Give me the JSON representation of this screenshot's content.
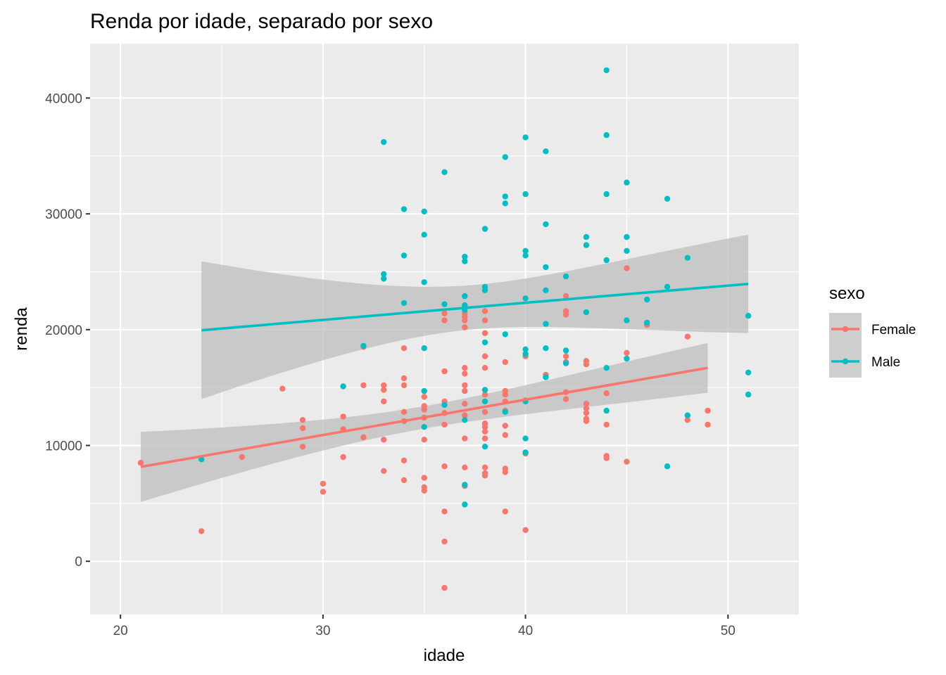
{
  "chart_data": {
    "type": "scatter",
    "title": "Renda por idade, separado por sexo",
    "xlabel": "idade",
    "ylabel": "renda",
    "xlim": [
      18.5,
      53.5
    ],
    "ylim": [
      -4600,
      44700
    ],
    "x_ticks": [
      20,
      30,
      40,
      50
    ],
    "y_ticks": [
      0,
      10000,
      20000,
      30000,
      40000
    ],
    "x_tick_labels": [
      "20",
      "30",
      "40",
      "50"
    ],
    "y_tick_labels": [
      "0",
      "10000",
      "20000",
      "30000",
      "40000"
    ],
    "grid": true,
    "legend_position": "right",
    "legend_title": "sexo",
    "colors": {
      "panel_bg": "#ebebeb",
      "grid": "#ffffff",
      "ribbon": "#bdbdbd",
      "Female": "#f8766d",
      "Male": "#00bfc4"
    },
    "series": [
      {
        "name": "Female",
        "color": "#f8766d",
        "points": [
          [
            21,
            8500
          ],
          [
            24,
            2600
          ],
          [
            26,
            9000
          ],
          [
            28,
            14900
          ],
          [
            29,
            12200
          ],
          [
            29,
            11500
          ],
          [
            29,
            9900
          ],
          [
            30,
            6700
          ],
          [
            30,
            6000
          ],
          [
            31,
            12500
          ],
          [
            31,
            11400
          ],
          [
            31,
            9000
          ],
          [
            32,
            18500
          ],
          [
            32,
            15200
          ],
          [
            32,
            10700
          ],
          [
            33,
            15200
          ],
          [
            33,
            14800
          ],
          [
            33,
            13800
          ],
          [
            33,
            10500
          ],
          [
            33,
            7800
          ],
          [
            34,
            18400
          ],
          [
            34,
            15800
          ],
          [
            34,
            15200
          ],
          [
            34,
            12900
          ],
          [
            34,
            12100
          ],
          [
            34,
            8700
          ],
          [
            34,
            7000
          ],
          [
            35,
            14200
          ],
          [
            35,
            13400
          ],
          [
            35,
            13100
          ],
          [
            35,
            12400
          ],
          [
            35,
            10500
          ],
          [
            35,
            7200
          ],
          [
            35,
            6400
          ],
          [
            35,
            6100
          ],
          [
            36,
            21400
          ],
          [
            36,
            20800
          ],
          [
            36,
            16400
          ],
          [
            36,
            13800
          ],
          [
            36,
            12800
          ],
          [
            36,
            11800
          ],
          [
            36,
            8200
          ],
          [
            36,
            4300
          ],
          [
            36,
            1700
          ],
          [
            36,
            -2300
          ],
          [
            37,
            21400
          ],
          [
            37,
            21100
          ],
          [
            37,
            20800
          ],
          [
            37,
            20200
          ],
          [
            37,
            16700
          ],
          [
            37,
            16200
          ],
          [
            37,
            15200
          ],
          [
            37,
            14700
          ],
          [
            37,
            13600
          ],
          [
            37,
            12600
          ],
          [
            37,
            10600
          ],
          [
            37,
            8100
          ],
          [
            37,
            6500
          ],
          [
            38,
            21600
          ],
          [
            38,
            20800
          ],
          [
            38,
            19700
          ],
          [
            38,
            17700
          ],
          [
            38,
            16700
          ],
          [
            38,
            14400
          ],
          [
            38,
            12900
          ],
          [
            38,
            11900
          ],
          [
            38,
            11600
          ],
          [
            38,
            11200
          ],
          [
            38,
            10600
          ],
          [
            38,
            8100
          ],
          [
            38,
            7600
          ],
          [
            38,
            7400
          ],
          [
            39,
            17200
          ],
          [
            39,
            14700
          ],
          [
            39,
            14400
          ],
          [
            39,
            13800
          ],
          [
            39,
            13000
          ],
          [
            39,
            11700
          ],
          [
            39,
            10900
          ],
          [
            39,
            8000
          ],
          [
            39,
            7700
          ],
          [
            39,
            4300
          ],
          [
            40,
            17700
          ],
          [
            40,
            13900
          ],
          [
            40,
            9300
          ],
          [
            40,
            2700
          ],
          [
            41,
            16100
          ],
          [
            42,
            22900
          ],
          [
            42,
            21600
          ],
          [
            42,
            21300
          ],
          [
            42,
            17700
          ],
          [
            42,
            17200
          ],
          [
            42,
            14600
          ],
          [
            42,
            14000
          ],
          [
            43,
            17300
          ],
          [
            43,
            17000
          ],
          [
            43,
            13600
          ],
          [
            43,
            13200
          ],
          [
            43,
            12800
          ],
          [
            43,
            12300
          ],
          [
            43,
            12100
          ],
          [
            44,
            14500
          ],
          [
            44,
            11800
          ],
          [
            44,
            9100
          ],
          [
            44,
            8900
          ],
          [
            45,
            25300
          ],
          [
            45,
            18000
          ],
          [
            45,
            8600
          ],
          [
            46,
            20400
          ],
          [
            48,
            19400
          ],
          [
            48,
            12200
          ],
          [
            49,
            13000
          ],
          [
            49,
            11800
          ]
        ],
        "trend": {
          "x": [
            21,
            49
          ],
          "y": [
            8150,
            16700
          ],
          "band_lower": [
            5100,
            14600
          ],
          "band_upper": [
            11150,
            18900
          ]
        }
      },
      {
        "name": "Male",
        "color": "#00bfc4",
        "points": [
          [
            24,
            8800
          ],
          [
            31,
            15100
          ],
          [
            32,
            18600
          ],
          [
            33,
            36200
          ],
          [
            33,
            24800
          ],
          [
            33,
            24400
          ],
          [
            34,
            30400
          ],
          [
            34,
            26400
          ],
          [
            34,
            22300
          ],
          [
            35,
            30200
          ],
          [
            35,
            28200
          ],
          [
            35,
            24100
          ],
          [
            35,
            18400
          ],
          [
            35,
            14700
          ],
          [
            35,
            11600
          ],
          [
            36,
            33600
          ],
          [
            36,
            22200
          ],
          [
            36,
            13500
          ],
          [
            37,
            26300
          ],
          [
            37,
            25900
          ],
          [
            37,
            22900
          ],
          [
            37,
            22100
          ],
          [
            37,
            21700
          ],
          [
            37,
            12200
          ],
          [
            37,
            6600
          ],
          [
            37,
            4900
          ],
          [
            38,
            28700
          ],
          [
            38,
            23700
          ],
          [
            38,
            23400
          ],
          [
            38,
            18900
          ],
          [
            38,
            14800
          ],
          [
            38,
            13800
          ],
          [
            38,
            9900
          ],
          [
            39,
            34900
          ],
          [
            39,
            31500
          ],
          [
            39,
            30900
          ],
          [
            39,
            19600
          ],
          [
            39,
            12900
          ],
          [
            40,
            36600
          ],
          [
            40,
            31700
          ],
          [
            40,
            26800
          ],
          [
            40,
            26400
          ],
          [
            40,
            22700
          ],
          [
            40,
            18300
          ],
          [
            40,
            17900
          ],
          [
            40,
            13800
          ],
          [
            40,
            10600
          ],
          [
            40,
            9400
          ],
          [
            41,
            35400
          ],
          [
            41,
            29100
          ],
          [
            41,
            25400
          ],
          [
            41,
            23400
          ],
          [
            41,
            20500
          ],
          [
            41,
            18400
          ],
          [
            41,
            15900
          ],
          [
            42,
            24600
          ],
          [
            42,
            18200
          ],
          [
            42,
            17100
          ],
          [
            43,
            28000
          ],
          [
            43,
            27300
          ],
          [
            43,
            21500
          ],
          [
            44,
            42400
          ],
          [
            44,
            36800
          ],
          [
            44,
            31700
          ],
          [
            44,
            26000
          ],
          [
            44,
            16700
          ],
          [
            44,
            13000
          ],
          [
            45,
            32700
          ],
          [
            45,
            28000
          ],
          [
            45,
            26800
          ],
          [
            45,
            20800
          ],
          [
            45,
            17500
          ],
          [
            46,
            22600
          ],
          [
            46,
            20600
          ],
          [
            47,
            31300
          ],
          [
            47,
            23700
          ],
          [
            47,
            8200
          ],
          [
            48,
            26200
          ],
          [
            48,
            12600
          ],
          [
            51,
            21200
          ],
          [
            51,
            16300
          ],
          [
            51,
            14400
          ]
        ],
        "trend": {
          "x": [
            24,
            51
          ],
          "y": [
            19950,
            23950
          ],
          "band_lower": [
            14000,
            19700
          ],
          "band_upper": [
            25900,
            28200
          ]
        }
      }
    ]
  }
}
